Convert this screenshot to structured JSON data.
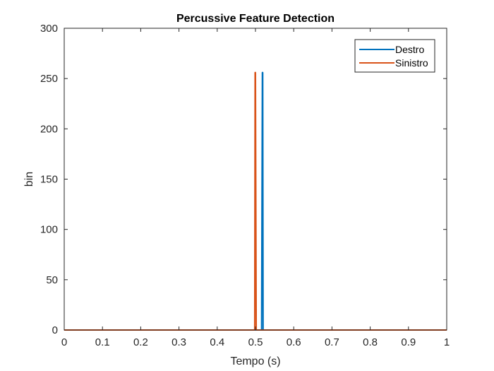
{
  "chart_data": {
    "type": "line",
    "title": "Percussive Feature Detection",
    "xlabel": "Tempo (s)",
    "ylabel": "bin",
    "xlim": [
      0,
      1
    ],
    "ylim": [
      0,
      300
    ],
    "xticks": [
      0,
      0.1,
      0.2,
      0.3,
      0.4,
      0.5,
      0.6,
      0.7,
      0.8,
      0.9,
      1
    ],
    "xtick_labels": [
      "0",
      "0.1",
      "0.2",
      "0.3",
      "0.4",
      "0.5",
      "0.6",
      "0.7",
      "0.8",
      "0.9",
      "1"
    ],
    "yticks": [
      0,
      50,
      100,
      150,
      200,
      250,
      300
    ],
    "ytick_labels": [
      "0",
      "50",
      "100",
      "150",
      "200",
      "250",
      "300"
    ],
    "grid": false,
    "legend_position": "top-right",
    "series": [
      {
        "name": "Destro",
        "color": "#0072BD",
        "x": [
          0,
          0.516,
          0.518,
          0.519,
          0.52,
          1
        ],
        "y": [
          0,
          0,
          256,
          256,
          0,
          0
        ]
      },
      {
        "name": "Sinistro",
        "color": "#D95319",
        "x": [
          0,
          0.498,
          0.499,
          0.5,
          0.502,
          1
        ],
        "y": [
          0,
          0,
          256,
          256,
          0,
          0
        ]
      }
    ]
  }
}
